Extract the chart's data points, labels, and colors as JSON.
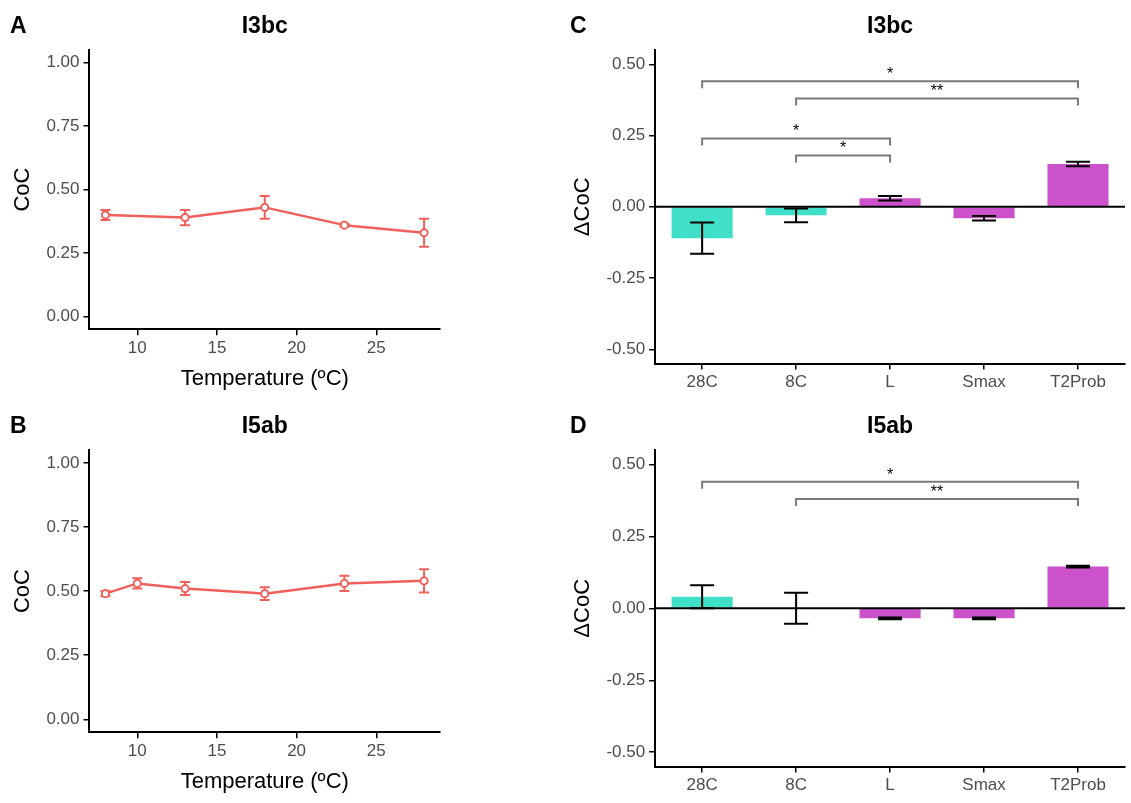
{
  "chart_data": [
    {
      "type": "line",
      "title": "I3bc",
      "xlabel": "Temperature (ºC)",
      "ylabel": "CoC",
      "x": [
        8,
        13,
        18,
        23,
        28
      ],
      "values": [
        0.4,
        0.39,
        0.43,
        0.36,
        0.33
      ],
      "errors": [
        0.02,
        0.03,
        0.045,
        0.005,
        0.055
      ],
      "color": "#f0605c",
      "marker": "circle",
      "xlim": [
        7,
        29
      ],
      "xticks": [
        10,
        15,
        20,
        25
      ],
      "ylim": [
        -0.05,
        1.05
      ],
      "yticks": [
        {
          "value": 0,
          "label": "0.00"
        },
        {
          "value": 0.25,
          "label": "0.25"
        },
        {
          "value": 0.5,
          "label": "0.50"
        },
        {
          "value": 0.75,
          "label": "0.75"
        },
        {
          "value": 1,
          "label": "1.00"
        }
      ],
      "annotations": [
        "A"
      ]
    },
    {
      "type": "bar",
      "title": "I3bc",
      "ylabel": "ΔCoC",
      "categories": [
        "28C",
        "8C",
        "L",
        "Smax",
        "T2Prob"
      ],
      "values": [
        -0.11,
        -0.03,
        0.03,
        -0.04,
        0.15
      ],
      "errors": [
        0.055,
        0.024,
        0.008,
        0.008,
        0.008
      ],
      "colors": [
        "#40e0c8",
        "#40e0c8",
        "#cc52cc",
        "#cc52cc",
        "#cc52cc"
      ],
      "ylim": [
        -0.55,
        0.55
      ],
      "yticks": [
        {
          "value": -0.5,
          "label": "-0.50"
        },
        {
          "value": -0.25,
          "label": "-0.25"
        },
        {
          "value": 0,
          "label": "0.00"
        },
        {
          "value": 0.25,
          "label": "0.25"
        },
        {
          "value": 0.5,
          "label": "0.50"
        }
      ],
      "ref_lines": [
        {
          "axis": "y",
          "value": 0
        }
      ],
      "annotations": [
        "C",
        "*",
        "**",
        "*",
        "*"
      ]
    },
    {
      "type": "line",
      "title": "I5ab",
      "xlabel": "Temperature (ºC)",
      "ylabel": "CoC",
      "x": [
        8,
        10,
        13,
        18,
        23,
        28
      ],
      "values": [
        0.49,
        0.53,
        0.51,
        0.49,
        0.53,
        0.54
      ],
      "errors": [
        0.01,
        0.02,
        0.025,
        0.025,
        0.03,
        0.045
      ],
      "color": "#f0605c",
      "marker": "circle",
      "xlim": [
        7,
        29
      ],
      "xticks": [
        10,
        15,
        20,
        25
      ],
      "ylim": [
        -0.05,
        1.05
      ],
      "yticks": [
        {
          "value": 0,
          "label": "0.00"
        },
        {
          "value": 0.25,
          "label": "0.25"
        },
        {
          "value": 0.5,
          "label": "0.50"
        },
        {
          "value": 0.75,
          "label": "0.75"
        },
        {
          "value": 1,
          "label": "1.00"
        }
      ],
      "annotations": [
        "B"
      ]
    },
    {
      "type": "bar",
      "title": "I5ab",
      "ylabel": "ΔCoC",
      "categories": [
        "28C",
        "8C",
        "L",
        "Smax",
        "T2Prob"
      ],
      "values": [
        0.04,
        0.0,
        -0.035,
        -0.035,
        0.145
      ],
      "errors": [
        0.04,
        0.054,
        0.003,
        0.003,
        0.003
      ],
      "colors": [
        "#40e0c8",
        "#40e0c8",
        "#cc52cc",
        "#cc52cc",
        "#cc52cc"
      ],
      "ylim": [
        -0.55,
        0.55
      ],
      "yticks": [
        {
          "value": -0.5,
          "label": "-0.50"
        },
        {
          "value": -0.25,
          "label": "-0.25"
        },
        {
          "value": 0,
          "label": "0.00"
        },
        {
          "value": 0.25,
          "label": "0.25"
        },
        {
          "value": 0.5,
          "label": "0.50"
        }
      ],
      "ref_lines": [
        {
          "axis": "y",
          "value": 0
        }
      ],
      "annotations": [
        "D",
        "*",
        "**"
      ]
    }
  ]
}
